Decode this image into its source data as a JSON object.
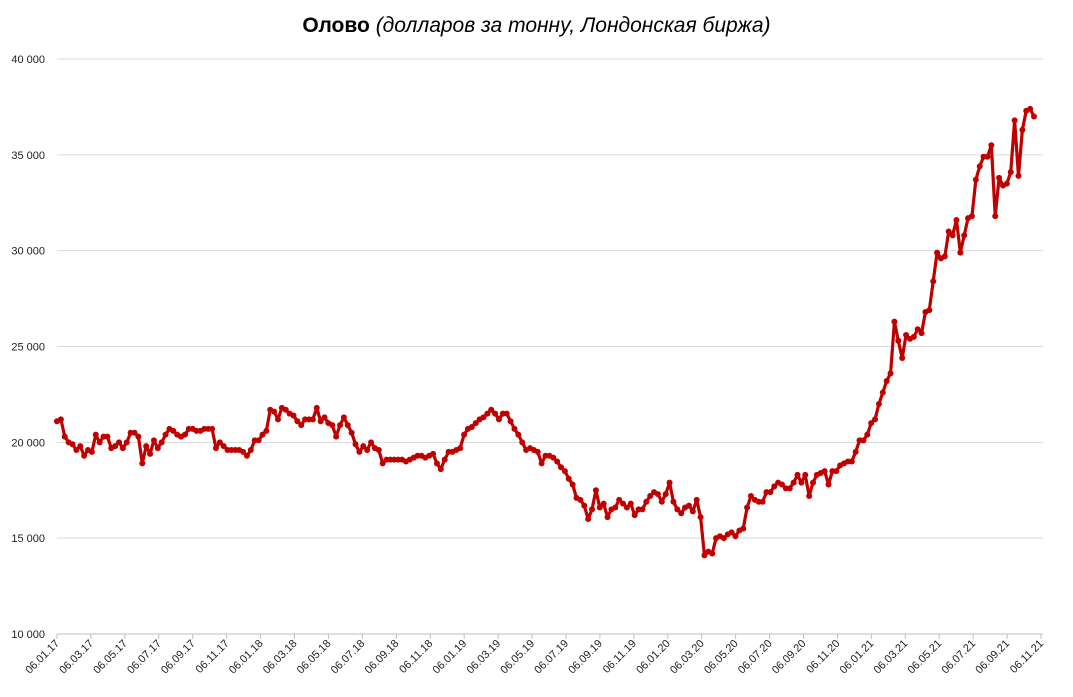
{
  "chart_data": {
    "type": "line",
    "title": "Олово",
    "subtitle": "(долларов за тонну, Лондонская биржа)",
    "ylim": [
      10000,
      40000
    ],
    "y_ticks": [
      10000,
      15000,
      20000,
      25000,
      30000,
      35000,
      40000
    ],
    "y_tick_labels": [
      "10 000",
      "15 000",
      "20 000",
      "25 000",
      "30 000",
      "35 000",
      "40 000"
    ],
    "x_tick_labels": [
      "06.01.17",
      "06.03.17",
      "06.05.17",
      "06.07.17",
      "06.09.17",
      "06.11.17",
      "06.01.18",
      "06.03.18",
      "06.05.18",
      "06.07.18",
      "06.09.18",
      "06.11.18",
      "06.01.19",
      "06.03.19",
      "06.05.19",
      "06.07.19",
      "06.09.19",
      "06.11.19",
      "06.01.20",
      "06.03.20",
      "06.05.20",
      "06.07.20",
      "06.09.20",
      "06.11.20",
      "06.01.21",
      "06.03.21",
      "06.05.21",
      "06.07.21",
      "06.09.21",
      "06.11.21"
    ],
    "grid": true,
    "colors": {
      "series": "#c00000",
      "grid": "#d9d9d9",
      "axis": "#bfbfbf"
    },
    "series": [
      {
        "values": [
          21100,
          21200,
          20300,
          20000,
          19900,
          19600,
          19800,
          19300,
          19600,
          19500,
          20400,
          20000,
          20300,
          20300,
          19700,
          19800,
          20000,
          19700,
          20000,
          20500,
          20500,
          20300,
          18900,
          19800,
          19400,
          20100,
          19700,
          20000,
          20400,
          20700,
          20600,
          20400,
          20300,
          20400,
          20700,
          20700,
          20600,
          20600,
          20700,
          20700,
          20700,
          19700,
          20000,
          19800,
          19600,
          19600,
          19600,
          19600,
          19500,
          19300,
          19600,
          20100,
          20100,
          20400,
          20600,
          21700,
          21600,
          21200,
          21800,
          21700,
          21500,
          21400,
          21100,
          20900,
          21200,
          21200,
          21200,
          21800,
          21100,
          21300,
          21000,
          20900,
          20300,
          20900,
          21300,
          20900,
          20500,
          19900,
          19500,
          19800,
          19600,
          20000,
          19700,
          19600,
          18900,
          19100,
          19100,
          19100,
          19100,
          19100,
          19000,
          19100,
          19200,
          19300,
          19300,
          19200,
          19300,
          19400,
          18900,
          18600,
          19100,
          19500,
          19500,
          19600,
          19700,
          20400,
          20700,
          20800,
          21000,
          21200,
          21300,
          21500,
          21700,
          21500,
          21200,
          21500,
          21500,
          21100,
          20700,
          20400,
          20000,
          19600,
          19700,
          19600,
          19500,
          18900,
          19300,
          19300,
          19200,
          19000,
          18700,
          18500,
          18100,
          17800,
          17100,
          17000,
          16700,
          16000,
          16500,
          17500,
          16600,
          16800,
          16100,
          16500,
          16600,
          17000,
          16800,
          16600,
          16800,
          16200,
          16500,
          16500,
          16900,
          17200,
          17400,
          17300,
          16900,
          17300,
          17900,
          16900,
          16500,
          16300,
          16600,
          16700,
          16400,
          17000,
          16100,
          14100,
          14300,
          14200,
          15000,
          15100,
          15000,
          15200,
          15300,
          15100,
          15400,
          15500,
          16600,
          17200,
          17000,
          16900,
          16900,
          17400,
          17400,
          17700,
          17900,
          17800,
          17600,
          17600,
          17900,
          18300,
          17900,
          18300,
          17200,
          17900,
          18300,
          18400,
          18500,
          17800,
          18500,
          18500,
          18800,
          18900,
          19000,
          19000,
          19500,
          20100,
          20100,
          20400,
          21000,
          21200,
          22000,
          22600,
          23200,
          23600,
          26300,
          25300,
          24400,
          25600,
          25400,
          25500,
          25900,
          25700,
          26800,
          26900,
          28400,
          29900,
          29600,
          29700,
          31000,
          30800,
          31600,
          29900,
          30800,
          31700,
          31800,
          33700,
          34400,
          34900,
          34900,
          35500,
          31800,
          33800,
          33400,
          33500,
          34100,
          36800,
          33900,
          36300,
          37300,
          37400,
          37000
        ]
      }
    ]
  }
}
